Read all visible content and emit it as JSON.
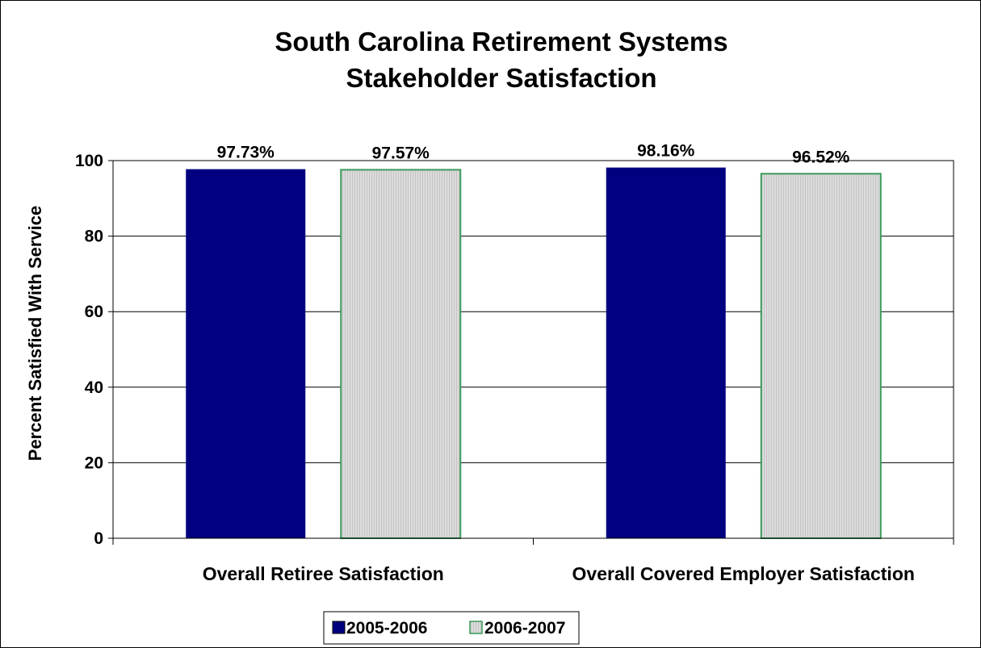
{
  "chart_data": {
    "type": "bar",
    "title_lines": [
      "South Carolina Retirement Systems",
      "Stakeholder Satisfaction"
    ],
    "ylabel": "Percent Satisfied With Service",
    "xlabel": "",
    "ylim": [
      0,
      100
    ],
    "yticks": [
      0,
      20,
      40,
      60,
      80,
      100
    ],
    "ytick_labels": [
      "0",
      "20",
      "40",
      "60",
      "80",
      "100"
    ],
    "grid": true,
    "categories": [
      "Overall Retiree Satisfaction",
      "Overall Covered Employer Satisfaction"
    ],
    "series": [
      {
        "name": "2005-2006",
        "values": [
          97.73,
          98.16
        ],
        "labels": [
          "97.73%",
          "98.16%"
        ],
        "color": "#000080"
      },
      {
        "name": "2006-2007",
        "values": [
          97.57,
          96.52
        ],
        "labels": [
          "97.57%",
          "96.52%"
        ],
        "color": "#d6d6d6",
        "border_color": "#3a9a5a"
      }
    ],
    "legend_position": "bottom"
  }
}
